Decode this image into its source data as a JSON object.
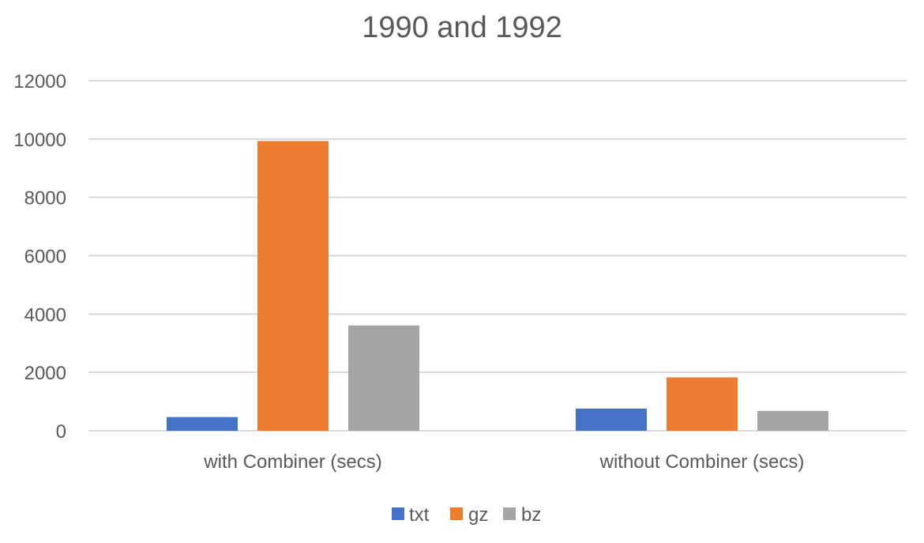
{
  "chart_data": {
    "type": "bar",
    "title": "1990 and 1992",
    "xlabel": "",
    "ylabel": "",
    "categories": [
      "with Combiner (secs)",
      "without Combiner (secs)"
    ],
    "series": [
      {
        "name": "txt",
        "color": "#4472C4",
        "values": [
          470,
          760
        ]
      },
      {
        "name": "gz",
        "color": "#ED7D31",
        "values": [
          9930,
          1830
        ]
      },
      {
        "name": "bz",
        "color": "#A5A5A5",
        "values": [
          3610,
          680
        ]
      }
    ],
    "ylim": [
      0,
      12000
    ],
    "yticks": [
      0,
      2000,
      4000,
      6000,
      8000,
      10000,
      12000
    ],
    "grid": true,
    "legend_position": "bottom"
  }
}
